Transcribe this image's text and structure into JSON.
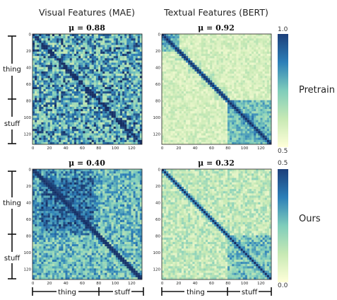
{
  "columns": {
    "visual": "Visual Features (MAE)",
    "textual": "Textual Features (BERT)"
  },
  "rows": {
    "pretrain": "Pretrain",
    "ours": "Ours"
  },
  "groups": {
    "thing": "thing",
    "stuff": "stuff"
  },
  "colorbars": [
    {
      "max": "1.0",
      "min": "0.5"
    },
    {
      "max": "0.5",
      "min": "0.0"
    }
  ],
  "colors": {
    "low": "#ffffd9",
    "mid": "#7fcdbb",
    "high": "#1d4a8c",
    "darkest": "#172a5e"
  },
  "chart_data": [
    {
      "type": "heatmap",
      "title": "μ = 0.88",
      "x_ticks": [
        0,
        20,
        40,
        60,
        80,
        100,
        120
      ],
      "y_ticks": [
        0,
        20,
        40,
        60,
        80,
        100,
        120
      ],
      "size": 133,
      "mean": 0.88,
      "colorbar_range": [
        0.5,
        1.0
      ]
    },
    {
      "type": "heatmap",
      "title": "μ = 0.92",
      "x_ticks": [
        0,
        20,
        40,
        60,
        80,
        100,
        120
      ],
      "y_ticks": [
        0,
        20,
        40,
        60,
        80,
        100,
        120
      ],
      "size": 133,
      "mean": 0.92,
      "colorbar_range": [
        0.5,
        1.0
      ]
    },
    {
      "type": "heatmap",
      "title": "μ = 0.40",
      "x_ticks": [
        0,
        20,
        40,
        60,
        80,
        100,
        120
      ],
      "y_ticks": [
        0,
        20,
        40,
        60,
        80,
        100,
        120
      ],
      "size": 133,
      "mean": 0.4,
      "colorbar_range": [
        0.0,
        0.5
      ]
    },
    {
      "type": "heatmap",
      "title": "μ = 0.32",
      "x_ticks": [
        0,
        20,
        40,
        60,
        80,
        100,
        120
      ],
      "y_ticks": [
        0,
        20,
        40,
        60,
        80,
        100,
        120
      ],
      "size": 133,
      "mean": 0.32,
      "colorbar_range": [
        0.0,
        0.5
      ]
    }
  ]
}
